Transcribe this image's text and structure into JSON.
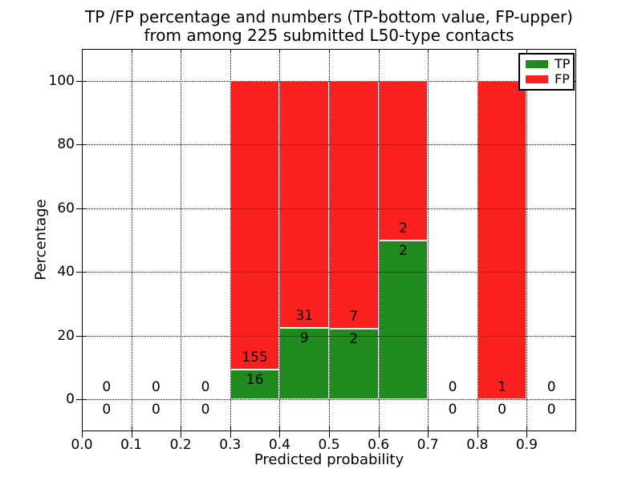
{
  "title": {
    "line1": "TP /FP percentage and numbers (TP-bottom value, FP-upper)",
    "line2": "from among 225 submitted L50-type contacts"
  },
  "chart_data": {
    "type": "bar",
    "stacked": true,
    "title": "TP /FP percentage and numbers (TP-bottom value, FP-upper) from among 225 submitted L50-type contacts",
    "xlabel": "Predicted probability",
    "ylabel": "Percentage",
    "xlim": [
      0.0,
      1.0
    ],
    "ylim": [
      -10,
      110
    ],
    "xticks": [
      "0.0",
      "0.1",
      "0.2",
      "0.3",
      "0.4",
      "0.5",
      "0.6",
      "0.7",
      "0.8",
      "0.9"
    ],
    "yticks": [
      "0",
      "20",
      "40",
      "60",
      "80",
      "100"
    ],
    "grid": true,
    "grid_style": "dotted",
    "legend_position": "upper right",
    "bin_width": 0.1,
    "colors": {
      "tp": "#1f8b1f",
      "fp": "#fb2020",
      "bar_edge": "#ffffff",
      "text": "#000000"
    },
    "legend": [
      {
        "label": "TP",
        "color": "#1f8b1f"
      },
      {
        "label": "FP",
        "color": "#fb2020"
      }
    ],
    "bins": [
      {
        "x_start": 0.0,
        "tp": 0,
        "fp": 0,
        "tp_pct": 0,
        "fp_pct": 0
      },
      {
        "x_start": 0.1,
        "tp": 0,
        "fp": 0,
        "tp_pct": 0,
        "fp_pct": 0
      },
      {
        "x_start": 0.2,
        "tp": 0,
        "fp": 0,
        "tp_pct": 0,
        "fp_pct": 0
      },
      {
        "x_start": 0.3,
        "tp": 16,
        "fp": 155,
        "tp_pct": 9.36,
        "fp_pct": 90.64
      },
      {
        "x_start": 0.4,
        "tp": 9,
        "fp": 31,
        "tp_pct": 22.5,
        "fp_pct": 77.5
      },
      {
        "x_start": 0.5,
        "tp": 2,
        "fp": 7,
        "tp_pct": 22.22,
        "fp_pct": 77.78
      },
      {
        "x_start": 0.6,
        "tp": 2,
        "fp": 2,
        "tp_pct": 50.0,
        "fp_pct": 50.0
      },
      {
        "x_start": 0.7,
        "tp": 0,
        "fp": 0,
        "tp_pct": 0,
        "fp_pct": 0
      },
      {
        "x_start": 0.8,
        "tp": 0,
        "fp": 1,
        "tp_pct": 0,
        "fp_pct": 100.0
      },
      {
        "x_start": 0.9,
        "tp": 0,
        "fp": 0,
        "tp_pct": 0,
        "fp_pct": 0
      }
    ]
  }
}
